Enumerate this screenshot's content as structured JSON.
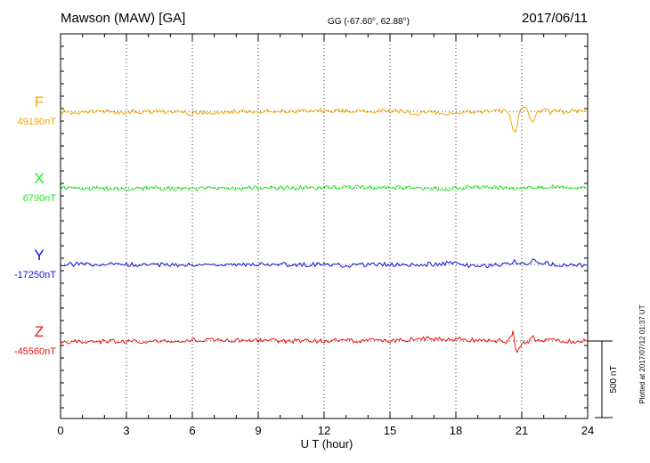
{
  "header": {
    "station": "Mawson (MAW)  [GA]",
    "coords": "GG (-67.60°,  62.88°)",
    "date": "2017/06/11"
  },
  "footer": {
    "plotted": "Plotted at 2017/07/12 01:37  UT",
    "scale_label": "500 nT"
  },
  "chart_data": {
    "type": "line",
    "xlabel": "U T (hour)",
    "x_ticks": [
      0,
      3,
      6,
      9,
      12,
      15,
      18,
      21,
      24
    ],
    "xlim": [
      0,
      24
    ],
    "scale_bar_nT": 500,
    "grid": true,
    "series": [
      {
        "name": "F",
        "baseline_label": "49190nT",
        "color": "#f5a800",
        "points": [
          [
            0,
            -3
          ],
          [
            0.5,
            -8
          ],
          [
            1,
            -6
          ],
          [
            2,
            -5
          ],
          [
            3,
            -4
          ],
          [
            4,
            -3
          ],
          [
            5,
            -5
          ],
          [
            5.5,
            -7
          ],
          [
            6,
            -16
          ],
          [
            6.3,
            -5
          ],
          [
            7,
            -6
          ],
          [
            8,
            -2
          ],
          [
            9,
            2
          ],
          [
            10,
            0
          ],
          [
            11,
            2
          ],
          [
            12,
            5
          ],
          [
            13,
            5
          ],
          [
            14,
            4
          ],
          [
            15,
            3
          ],
          [
            15.8,
            0
          ],
          [
            16,
            -16
          ],
          [
            16.5,
            -10
          ],
          [
            17,
            -9
          ],
          [
            17.5,
            -16
          ],
          [
            18,
            -18
          ],
          [
            18.5,
            -6
          ],
          [
            19,
            -2
          ],
          [
            20,
            1
          ],
          [
            20.3,
            -2
          ],
          [
            20.45,
            -22
          ],
          [
            20.55,
            -80
          ],
          [
            20.65,
            -135
          ],
          [
            20.75,
            -120
          ],
          [
            20.85,
            -40
          ],
          [
            21,
            30
          ],
          [
            21.2,
            18
          ],
          [
            21.35,
            -30
          ],
          [
            21.5,
            -65
          ],
          [
            21.6,
            -40
          ],
          [
            21.75,
            0
          ],
          [
            22,
            15
          ],
          [
            22.3,
            -10
          ],
          [
            22.6,
            8
          ],
          [
            23,
            -8
          ],
          [
            23.3,
            0
          ],
          [
            23.6,
            -4
          ],
          [
            24,
            0
          ]
        ]
      },
      {
        "name": "X",
        "baseline_label": "6790nT",
        "color": "#22ee22",
        "points": [
          [
            0,
            -4
          ],
          [
            1,
            -3
          ],
          [
            2,
            -4
          ],
          [
            3,
            -3
          ],
          [
            4,
            -3
          ],
          [
            5,
            -4
          ],
          [
            6,
            -8
          ],
          [
            6.3,
            -4
          ],
          [
            7,
            -2
          ],
          [
            8,
            -1
          ],
          [
            9,
            0
          ],
          [
            10,
            0
          ],
          [
            11,
            1
          ],
          [
            12,
            1
          ],
          [
            13,
            2
          ],
          [
            14,
            2
          ],
          [
            15,
            2
          ],
          [
            15.8,
            4
          ],
          [
            16.2,
            -2
          ],
          [
            17,
            -3
          ],
          [
            17.5,
            -6
          ],
          [
            17.8,
            -8
          ],
          [
            18,
            -4
          ],
          [
            18.5,
            4
          ],
          [
            19,
            2
          ],
          [
            20,
            2
          ],
          [
            20.4,
            -8
          ],
          [
            20.55,
            5
          ],
          [
            20.7,
            -10
          ],
          [
            20.85,
            0
          ],
          [
            21.2,
            5
          ],
          [
            21.4,
            -2
          ],
          [
            21.6,
            2
          ],
          [
            22,
            3
          ],
          [
            22.5,
            10
          ],
          [
            23,
            3
          ],
          [
            24,
            0
          ]
        ]
      },
      {
        "name": "Y",
        "baseline_label": "-17250nT",
        "color": "#1010dd",
        "points": [
          [
            0,
            2
          ],
          [
            1,
            1
          ],
          [
            2,
            0
          ],
          [
            3,
            0
          ],
          [
            4,
            -2
          ],
          [
            5,
            -3
          ],
          [
            6,
            -4
          ],
          [
            6.3,
            -3
          ],
          [
            7,
            -1
          ],
          [
            8,
            -2
          ],
          [
            9,
            0
          ],
          [
            10,
            -1
          ],
          [
            11,
            0
          ],
          [
            12,
            -3
          ],
          [
            13,
            -6
          ],
          [
            14,
            -3
          ],
          [
            15,
            -2
          ],
          [
            16,
            -2
          ],
          [
            16.5,
            0
          ],
          [
            17,
            2
          ],
          [
            17.5,
            8
          ],
          [
            18,
            5
          ],
          [
            18.5,
            -5
          ],
          [
            19,
            -8
          ],
          [
            19.8,
            -4
          ],
          [
            20.2,
            -2
          ],
          [
            20.5,
            8
          ],
          [
            20.6,
            25
          ],
          [
            20.75,
            18
          ],
          [
            21,
            5
          ],
          [
            21.3,
            8
          ],
          [
            21.5,
            30
          ],
          [
            21.6,
            38
          ],
          [
            21.7,
            20
          ],
          [
            22,
            10
          ],
          [
            22.5,
            0
          ],
          [
            23,
            -3
          ],
          [
            23.5,
            -5
          ],
          [
            24,
            -5
          ]
        ]
      },
      {
        "name": "Z",
        "baseline_label": "-45560nT",
        "color": "#ee1111",
        "points": [
          [
            0,
            -6
          ],
          [
            1,
            -4
          ],
          [
            2,
            -3
          ],
          [
            3,
            -2
          ],
          [
            4,
            -1
          ],
          [
            5,
            3
          ],
          [
            5.5,
            4
          ],
          [
            6,
            6
          ],
          [
            6.3,
            9
          ],
          [
            7,
            7
          ],
          [
            8,
            5
          ],
          [
            9,
            2
          ],
          [
            10,
            1
          ],
          [
            11,
            2
          ],
          [
            12,
            3
          ],
          [
            13,
            3
          ],
          [
            14,
            2
          ],
          [
            15,
            2
          ],
          [
            15.8,
            4
          ],
          [
            16.2,
            16
          ],
          [
            17,
            14
          ],
          [
            17.5,
            12
          ],
          [
            18,
            15
          ],
          [
            18.5,
            8
          ],
          [
            19,
            4
          ],
          [
            20,
            2
          ],
          [
            20.3,
            -5
          ],
          [
            20.5,
            30
          ],
          [
            20.6,
            55
          ],
          [
            20.7,
            -40
          ],
          [
            20.8,
            -70
          ],
          [
            20.9,
            -45
          ],
          [
            21,
            -20
          ],
          [
            21.3,
            -5
          ],
          [
            21.45,
            25
          ],
          [
            21.55,
            18
          ],
          [
            21.7,
            -2
          ],
          [
            22,
            2
          ],
          [
            22.5,
            4
          ],
          [
            23,
            0
          ],
          [
            23.5,
            -2
          ],
          [
            24,
            0
          ]
        ]
      }
    ]
  }
}
